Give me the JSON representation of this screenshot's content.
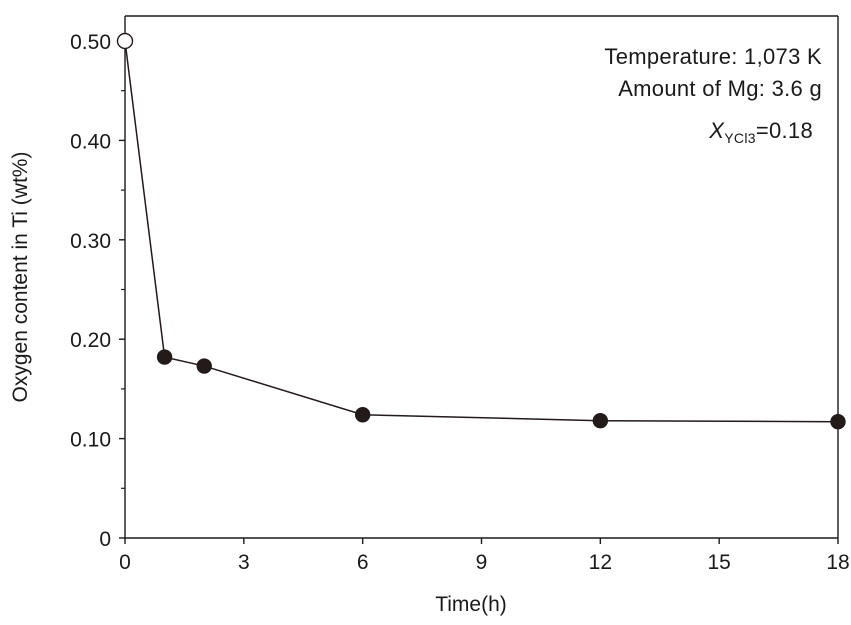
{
  "chart_data": {
    "type": "line",
    "title": "",
    "xlabel": "Time(h)",
    "ylabel": "Oxygen content in Ti (wt%)",
    "xlim": [
      0,
      18
    ],
    "ylim": [
      0,
      0.5
    ],
    "xticks": [
      0,
      3,
      6,
      9,
      12,
      15,
      18
    ],
    "xtick_labels": [
      "0",
      "3",
      "6",
      "9",
      "12",
      "15",
      "18"
    ],
    "yticks": [
      0,
      0.1,
      0.2,
      0.3,
      0.4,
      0.5
    ],
    "ytick_labels": [
      "0",
      "0.10",
      "0.20",
      "0.30",
      "0.40",
      "0.50"
    ],
    "grid": false,
    "series": [
      {
        "x": [
          0,
          1,
          2,
          6,
          12,
          18
        ],
        "y": [
          0.5,
          0.182,
          0.173,
          0.124,
          0.118,
          0.117
        ],
        "markers": [
          "open-circle",
          "filled-circle",
          "filled-circle",
          "filled-circle",
          "filled-circle",
          "filled-circle"
        ],
        "color": "#231a1a"
      }
    ],
    "annotations": {
      "temperature": "Temperature: 1,073 K",
      "mg_amount": "Amount of Mg: 3.6 g",
      "x_symbol": "X",
      "x_subscript": "YCl3",
      "x_value": "=0.18"
    }
  }
}
